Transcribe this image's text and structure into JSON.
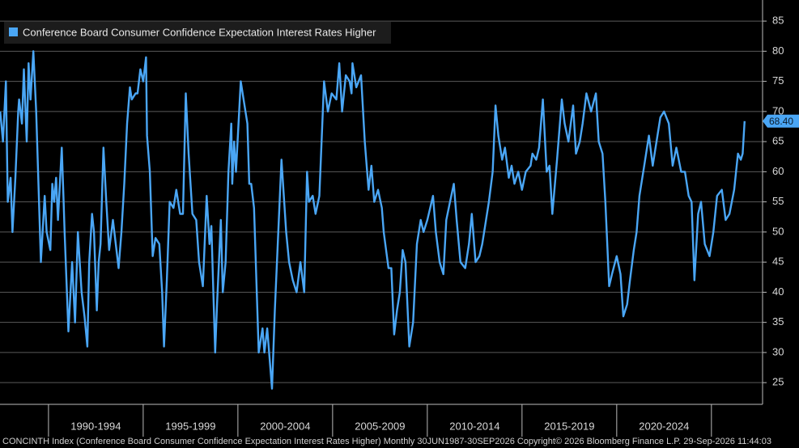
{
  "chart_data": {
    "type": "line",
    "series": [
      {
        "name": "Conference Board Consumer Confidence Expectation Interest Rates Higher",
        "color": "#4aa6f5",
        "values": [
          70,
          65,
          75,
          55,
          59,
          50,
          59,
          70,
          72,
          68,
          77,
          65,
          78,
          72,
          80,
          70,
          55,
          45,
          56,
          50,
          47,
          58,
          55,
          59,
          52,
          64,
          55,
          50,
          33.5,
          45,
          35,
          50,
          40,
          36,
          31,
          45,
          53,
          50,
          37,
          45,
          48,
          64,
          55,
          47,
          52,
          48,
          44,
          50,
          58,
          68,
          74,
          72,
          73,
          73,
          77,
          75,
          79,
          66,
          60,
          46,
          49,
          48,
          40,
          31,
          42,
          55,
          54,
          57,
          53,
          53,
          73,
          63,
          53,
          52,
          45,
          41,
          56,
          48,
          51,
          30,
          38,
          52,
          40,
          45,
          60,
          68,
          58,
          65,
          60,
          75,
          72,
          68,
          58,
          58,
          54,
          30,
          34,
          30,
          34,
          24,
          37,
          44,
          62,
          50,
          45,
          42,
          40,
          45,
          40,
          60,
          55,
          56,
          53,
          56,
          75,
          70,
          73,
          72,
          78,
          70,
          76,
          75,
          73,
          78,
          74,
          76,
          65,
          57,
          61,
          55,
          57,
          54,
          50,
          44,
          44,
          33,
          37,
          40,
          47,
          45,
          31,
          35,
          48,
          52,
          50,
          52,
          56,
          50,
          45,
          43,
          52,
          55,
          58,
          52,
          45,
          44,
          48,
          53,
          45,
          46,
          48,
          52,
          55,
          60,
          71,
          66,
          62,
          64,
          59,
          61,
          58,
          60,
          57,
          60,
          61,
          63,
          62,
          64,
          72,
          60,
          61,
          53,
          62,
          72,
          68,
          65,
          71,
          63,
          65,
          68,
          73,
          70,
          73,
          65,
          63,
          55,
          41,
          43,
          46,
          43,
          36,
          38,
          42,
          47,
          50,
          56,
          61,
          66,
          61,
          65,
          69,
          70,
          68,
          61,
          64,
          60,
          60,
          56,
          55,
          42,
          53,
          55,
          48,
          46,
          50,
          56,
          57,
          52,
          53,
          57,
          63,
          62,
          63,
          68.4
        ]
      }
    ],
    "x": [
      1987.45,
      1987.6,
      1987.75,
      1987.85,
      1988.0,
      1988.1,
      1988.25,
      1988.4,
      1988.45,
      1988.6,
      1988.7,
      1988.85,
      1988.95,
      1989.05,
      1989.2,
      1989.35,
      1989.5,
      1989.6,
      1989.8,
      1989.9,
      1990.1,
      1990.2,
      1990.3,
      1990.4,
      1990.5,
      1990.7,
      1990.8,
      1990.85,
      1991.05,
      1991.25,
      1991.4,
      1991.55,
      1991.75,
      1991.9,
      1992.05,
      1992.15,
      1992.3,
      1992.4,
      1992.55,
      1992.65,
      1992.75,
      1992.9,
      1993.05,
      1993.2,
      1993.4,
      1993.55,
      1993.7,
      1993.85,
      1994.0,
      1994.15,
      1994.3,
      1994.4,
      1994.6,
      1994.7,
      1994.85,
      1995.0,
      1995.15,
      1995.2,
      1995.35,
      1995.5,
      1995.65,
      1995.85,
      1996.0,
      1996.1,
      1996.25,
      1996.4,
      1996.6,
      1996.75,
      1996.95,
      1997.1,
      1997.25,
      1997.4,
      1997.6,
      1997.8,
      1997.95,
      1998.15,
      1998.35,
      1998.5,
      1998.6,
      1998.8,
      1998.9,
      1999.1,
      1999.2,
      1999.35,
      1999.5,
      1999.65,
      1999.7,
      1999.8,
      1999.9,
      2000.15,
      2000.3,
      2000.5,
      2000.6,
      2000.7,
      2000.85,
      2001.1,
      2001.3,
      2001.4,
      2001.55,
      2001.8,
      2001.95,
      2002.05,
      2002.3,
      2002.55,
      2002.7,
      2002.9,
      2003.1,
      2003.3,
      2003.5,
      2003.65,
      2003.75,
      2003.95,
      2004.1,
      2004.3,
      2004.55,
      2004.75,
      2004.95,
      2005.2,
      2005.35,
      2005.5,
      2005.7,
      2005.9,
      2006.0,
      2006.05,
      2006.25,
      2006.5,
      2006.7,
      2006.9,
      2007.05,
      2007.2,
      2007.4,
      2007.6,
      2007.7,
      2007.95,
      2008.1,
      2008.25,
      2008.4,
      2008.55,
      2008.7,
      2008.85,
      2009.05,
      2009.25,
      2009.45,
      2009.65,
      2009.8,
      2010.0,
      2010.3,
      2010.45,
      2010.65,
      2010.85,
      2011.0,
      2011.2,
      2011.4,
      2011.55,
      2011.75,
      2012.0,
      2012.2,
      2012.35,
      2012.55,
      2012.75,
      2012.9,
      2013.1,
      2013.25,
      2013.45,
      2013.6,
      2013.75,
      2013.95,
      2014.1,
      2014.3,
      2014.45,
      2014.6,
      2014.8,
      2015.0,
      2015.2,
      2015.45,
      2015.55,
      2015.75,
      2015.9,
      2016.1,
      2016.3,
      2016.45,
      2016.6,
      2016.85,
      2017.1,
      2017.25,
      2017.45,
      2017.7,
      2017.85,
      2018.05,
      2018.2,
      2018.4,
      2018.65,
      2018.9,
      2019.05,
      2019.25,
      2019.4,
      2019.6,
      2019.75,
      2020.0,
      2020.2,
      2020.35,
      2020.55,
      2020.7,
      2020.9,
      2021.05,
      2021.2,
      2021.45,
      2021.7,
      2021.9,
      2022.1,
      2022.3,
      2022.5,
      2022.75,
      2022.95,
      2023.15,
      2023.4,
      2023.6,
      2023.8,
      2023.95,
      2024.1,
      2024.3,
      2024.45,
      2024.65,
      2024.9,
      2025.1,
      2025.3,
      2025.55,
      2025.75,
      2025.95,
      2026.2,
      2026.4,
      2026.55,
      2026.65,
      2026.75
    ],
    "xlim": [
      1987.44,
      2027.7
    ],
    "xticks": [
      {
        "value": 1992.5,
        "label": "1990-1994"
      },
      {
        "value": 1997.5,
        "label": "1995-1999"
      },
      {
        "value": 2002.5,
        "label": "2000-2004"
      },
      {
        "value": 2007.5,
        "label": "2005-2009"
      },
      {
        "value": 2012.5,
        "label": "2010-2014"
      },
      {
        "value": 2017.5,
        "label": "2015-2019"
      },
      {
        "value": 2022.5,
        "label": "2020-2024"
      }
    ],
    "ylim": [
      21.4,
      88.5
    ],
    "yticks": [
      25,
      30,
      35,
      40,
      45,
      50,
      55,
      60,
      65,
      70,
      75,
      80,
      85
    ],
    "grid": true,
    "legend": "upper left",
    "last_value": {
      "value": 68.4,
      "label": "68.40"
    },
    "footer": "CONCINTH Index (Conference Board Consumer Confidence Expectation Interest Rates Higher) Monthly 30JUN1987-30SEP2026 Copyright© 2026 Bloomberg Finance L.P. 29-Sep-2026 11:44:03"
  }
}
